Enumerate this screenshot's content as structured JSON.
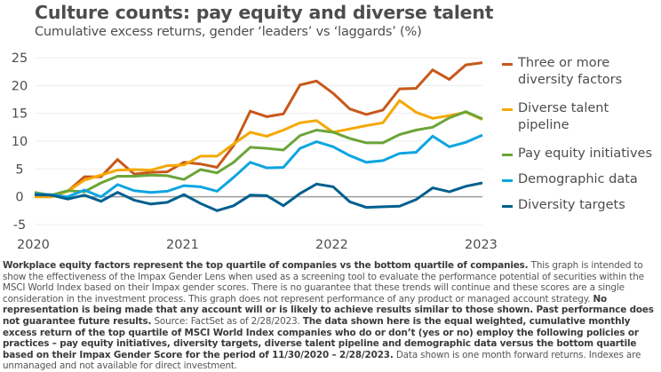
{
  "header": {
    "title": "Culture counts: pay equity and diverse talent",
    "subtitle": "Cumulative excess returns, gender ‘leaders’ vs ‘laggards’ (%)"
  },
  "chart_data": {
    "type": "line",
    "title": "Culture counts: pay equity and diverse talent",
    "subtitle": "Cumulative excess returns, gender ‘leaders’ vs ‘laggards’ (%)",
    "xlabel": "",
    "ylabel": "",
    "x_range": [
      2020.0,
      2023.0
    ],
    "x_start": "2020-11-30",
    "x_end": "2023-02-28",
    "x_ticks": [
      "2020",
      "2021",
      "2022",
      "2023"
    ],
    "ylim": [
      -5,
      25
    ],
    "y_ticks": [
      25,
      20,
      15,
      10,
      5,
      0,
      -5
    ],
    "grid": true,
    "legend_position": "right",
    "series": [
      {
        "name": "Three or more diversity factors",
        "color": "#C8581A",
        "values": [
          0.4,
          0.3,
          1.0,
          3.6,
          3.6,
          6.7,
          4.1,
          4.4,
          4.5,
          6.2,
          5.9,
          5.3,
          9.2,
          15.4,
          14.4,
          14.9,
          20.1,
          20.8,
          18.6,
          15.8,
          14.8,
          15.6,
          19.4,
          19.5,
          22.8,
          21.1,
          23.7,
          24.1
        ]
      },
      {
        "name": "Diverse talent pipeline",
        "color": "#F5A800",
        "values": [
          0.0,
          0.0,
          1.0,
          3.0,
          3.9,
          4.8,
          4.9,
          4.8,
          5.6,
          5.7,
          7.3,
          7.3,
          9.5,
          11.6,
          10.9,
          12.0,
          13.3,
          13.7,
          11.6,
          12.2,
          12.8,
          13.3,
          17.3,
          15.2,
          14.1,
          14.6,
          15.2,
          13.9
        ]
      },
      {
        "name": "Pay equity initiatives",
        "color": "#6BA539",
        "values": [
          0.8,
          0.3,
          1.1,
          0.9,
          2.5,
          3.7,
          3.7,
          3.9,
          3.8,
          3.1,
          4.9,
          4.3,
          6.2,
          8.9,
          8.7,
          8.4,
          11.0,
          12.0,
          11.6,
          10.5,
          9.7,
          9.7,
          11.2,
          12.0,
          12.5,
          14.2,
          15.3,
          14.0
        ]
      },
      {
        "name": "Demographic data",
        "color": "#0EA5E0",
        "values": [
          0.5,
          0.4,
          0.0,
          1.2,
          0.0,
          2.2,
          1.1,
          0.8,
          1.0,
          2.0,
          1.8,
          1.0,
          3.5,
          6.2,
          5.2,
          5.3,
          8.7,
          9.9,
          9.0,
          7.4,
          6.2,
          6.5,
          7.8,
          8.0,
          10.9,
          9.0,
          9.8,
          11.1
        ]
      },
      {
        "name": "Diversity targets",
        "color": "#005F8E",
        "values": [
          0.4,
          0.3,
          -0.4,
          0.3,
          -0.8,
          0.8,
          -0.6,
          -1.3,
          -1.0,
          0.4,
          -1.2,
          -2.5,
          -1.6,
          0.3,
          0.2,
          -1.6,
          0.6,
          2.3,
          1.8,
          -0.9,
          -1.9,
          -1.8,
          -1.7,
          -0.5,
          1.6,
          0.9,
          1.9,
          2.5
        ]
      }
    ]
  },
  "legend": {
    "items": [
      {
        "label": "Three or more diversity factors",
        "color": "#C8581A"
      },
      {
        "label": "Diverse talent pipeline",
        "color": "#F5A800"
      },
      {
        "label": "Pay equity initiatives",
        "color": "#6BA539"
      },
      {
        "label": "Demographic data",
        "color": "#0EA5E0"
      },
      {
        "label": "Diversity targets",
        "color": "#005F8E"
      }
    ]
  },
  "colors": {
    "gridline": "#EDEDED",
    "zero_line": "#9B9B9B",
    "text": "#4D4D4D"
  },
  "footer": {
    "p1_bold": "Workplace equity factors represent the top quartile of companies vs the bottom quartile of companies.",
    "p2": " This graph is intended to show the effectiveness of the Impax Gender Lens when used as a screening tool to evaluate the performance potential of securities within the MSCI World Index based on their Impax gender scores. There is no guarantee that these trends will continue and these scores are a single consideration in the investment process. This graph does not represent performance of any product or managed account strategy. ",
    "p3_bold": "No representation is being made that any account will or is likely to achieve results similar to those shown. Past performance does not guarantee future results.",
    "p4": " Source: FactSet as of 2/28/2023. ",
    "p5_bold": "The data shown here is the equal weighted, cumulative monthly excess return of the top quartile of MSCI World Index companies who do or don’t (yes or no) employ the following policies or practices – pay equity initiatives, diversity targets, diverse talent pipeline and demographic data versus the bottom quartile based on their Impax Gender Score for the period of 11/30/2020 – 2/28/2023.",
    "p6": " Data shown is one month forward returns. Indexes are unmanaged and not available for direct investment."
  }
}
